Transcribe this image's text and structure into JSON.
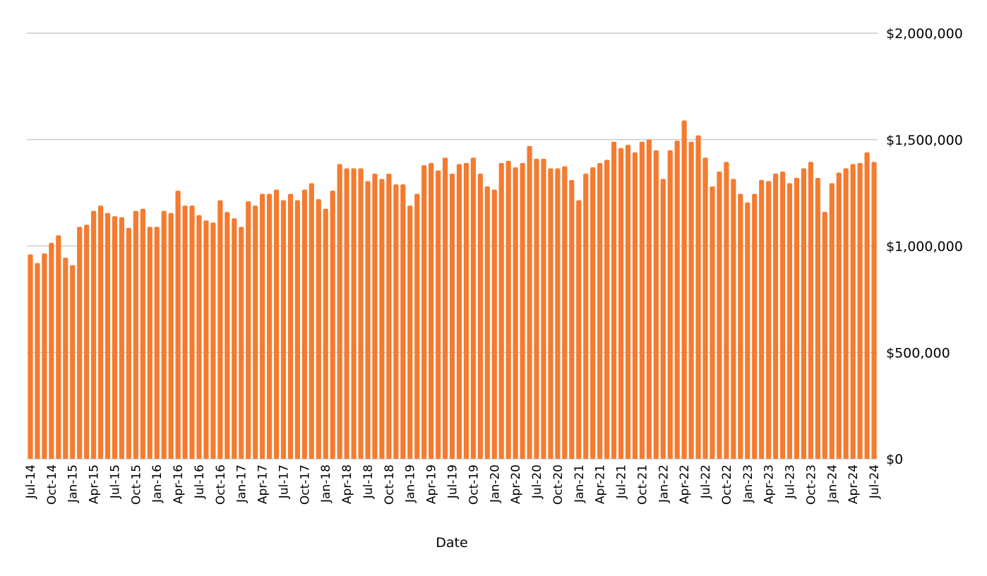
{
  "chart_data": {
    "type": "bar",
    "title": "",
    "xlabel": "Date",
    "ylabel": "",
    "ylim": [
      0,
      2000000
    ],
    "yticks": [
      0,
      500000,
      1000000,
      1500000,
      2000000
    ],
    "ytick_labels": [
      "$0",
      "$500,000",
      "$1,000,000",
      "$1,500,000",
      "$2,000,000"
    ],
    "grid": true,
    "y_axis_position": "right",
    "bar_color": "#f47b2f",
    "categories": [
      "Jul-14",
      "Aug-14",
      "Sep-14",
      "Oct-14",
      "Nov-14",
      "Dec-14",
      "Jan-15",
      "Feb-15",
      "Mar-15",
      "Apr-15",
      "May-15",
      "Jun-15",
      "Jul-15",
      "Aug-15",
      "Sep-15",
      "Oct-15",
      "Nov-15",
      "Dec-15",
      "Jan-16",
      "Feb-16",
      "Mar-16",
      "Apr-16",
      "May-16",
      "Jun-16",
      "Jul-16",
      "Aug-16",
      "Sep-16",
      "Oct-16",
      "Nov-16",
      "Dec-16",
      "Jan-17",
      "Feb-17",
      "Mar-17",
      "Apr-17",
      "May-17",
      "Jun-17",
      "Jul-17",
      "Aug-17",
      "Sep-17",
      "Oct-17",
      "Nov-17",
      "Dec-17",
      "Jan-18",
      "Feb-18",
      "Mar-18",
      "Apr-18",
      "May-18",
      "Jun-18",
      "Jul-18",
      "Aug-18",
      "Sep-18",
      "Oct-18",
      "Nov-18",
      "Dec-18",
      "Jan-19",
      "Feb-19",
      "Mar-19",
      "Apr-19",
      "May-19",
      "Jun-19",
      "Jul-19",
      "Aug-19",
      "Sep-19",
      "Oct-19",
      "Nov-19",
      "Dec-19",
      "Jan-20",
      "Feb-20",
      "Mar-20",
      "Apr-20",
      "May-20",
      "Jun-20",
      "Jul-20",
      "Aug-20",
      "Sep-20",
      "Oct-20",
      "Nov-20",
      "Dec-20",
      "Jan-21",
      "Feb-21",
      "Mar-21",
      "Apr-21",
      "May-21",
      "Jun-21",
      "Jul-21",
      "Aug-21",
      "Sep-21",
      "Oct-21",
      "Nov-21",
      "Dec-21",
      "Jan-22",
      "Feb-22",
      "Mar-22",
      "Apr-22",
      "May-22",
      "Jun-22",
      "Jul-22",
      "Aug-22",
      "Sep-22",
      "Oct-22",
      "Nov-22",
      "Dec-22",
      "Jan-23",
      "Feb-23",
      "Mar-23",
      "Apr-23",
      "May-23",
      "Jun-23",
      "Jul-23",
      "Aug-23",
      "Sep-23",
      "Oct-23",
      "Nov-23",
      "Dec-23",
      "Jan-24",
      "Feb-24",
      "Mar-24",
      "Apr-24",
      "May-24",
      "Jun-24",
      "Jul-24"
    ],
    "visible_tick_labels": [
      "Jul-14",
      "Oct-14",
      "Jan-15",
      "Apr-15",
      "Jul-15",
      "Oct-15",
      "Jan-16",
      "Apr-16",
      "Jul-16",
      "Oct-16",
      "Jan-17",
      "Apr-17",
      "Jul-17",
      "Oct-17",
      "Jan-18",
      "Apr-18",
      "Jul-18",
      "Oct-18",
      "Jan-19",
      "Apr-19",
      "Jul-19",
      "Oct-19",
      "Jan-20",
      "Apr-20",
      "Jul-20",
      "Oct-20",
      "Jan-21",
      "Apr-21",
      "Jul-21",
      "Oct-21",
      "Jan-22",
      "Apr-22",
      "Jul-22",
      "Oct-22",
      "Jan-23",
      "Apr-23",
      "Jul-23",
      "Oct-23",
      "Jan-24",
      "Apr-24",
      "Jul-24"
    ],
    "values": [
      960000,
      920000,
      965000,
      1015000,
      1050000,
      945000,
      910000,
      1090000,
      1100000,
      1165000,
      1190000,
      1155000,
      1140000,
      1135000,
      1085000,
      1165000,
      1175000,
      1090000,
      1090000,
      1165000,
      1155000,
      1260000,
      1190000,
      1190000,
      1145000,
      1120000,
      1110000,
      1215000,
      1160000,
      1130000,
      1090000,
      1210000,
      1190000,
      1245000,
      1245000,
      1265000,
      1215000,
      1245000,
      1215000,
      1265000,
      1295000,
      1220000,
      1175000,
      1260000,
      1385000,
      1365000,
      1365000,
      1365000,
      1305000,
      1340000,
      1315000,
      1340000,
      1290000,
      1290000,
      1190000,
      1245000,
      1380000,
      1390000,
      1355000,
      1415000,
      1340000,
      1385000,
      1390000,
      1415000,
      1340000,
      1280000,
      1265000,
      1390000,
      1400000,
      1370000,
      1390000,
      1470000,
      1410000,
      1410000,
      1365000,
      1365000,
      1375000,
      1310000,
      1215000,
      1340000,
      1370000,
      1390000,
      1405000,
      1490000,
      1460000,
      1475000,
      1440000,
      1490000,
      1500000,
      1450000,
      1315000,
      1450000,
      1495000,
      1590000,
      1490000,
      1520000,
      1415000,
      1280000,
      1350000,
      1395000,
      1315000,
      1245000,
      1205000,
      1245000,
      1310000,
      1305000,
      1340000,
      1350000,
      1295000,
      1320000,
      1365000,
      1395000,
      1320000,
      1160000,
      1295000,
      1345000,
      1365000,
      1385000,
      1390000,
      1440000,
      1395000
    ]
  }
}
